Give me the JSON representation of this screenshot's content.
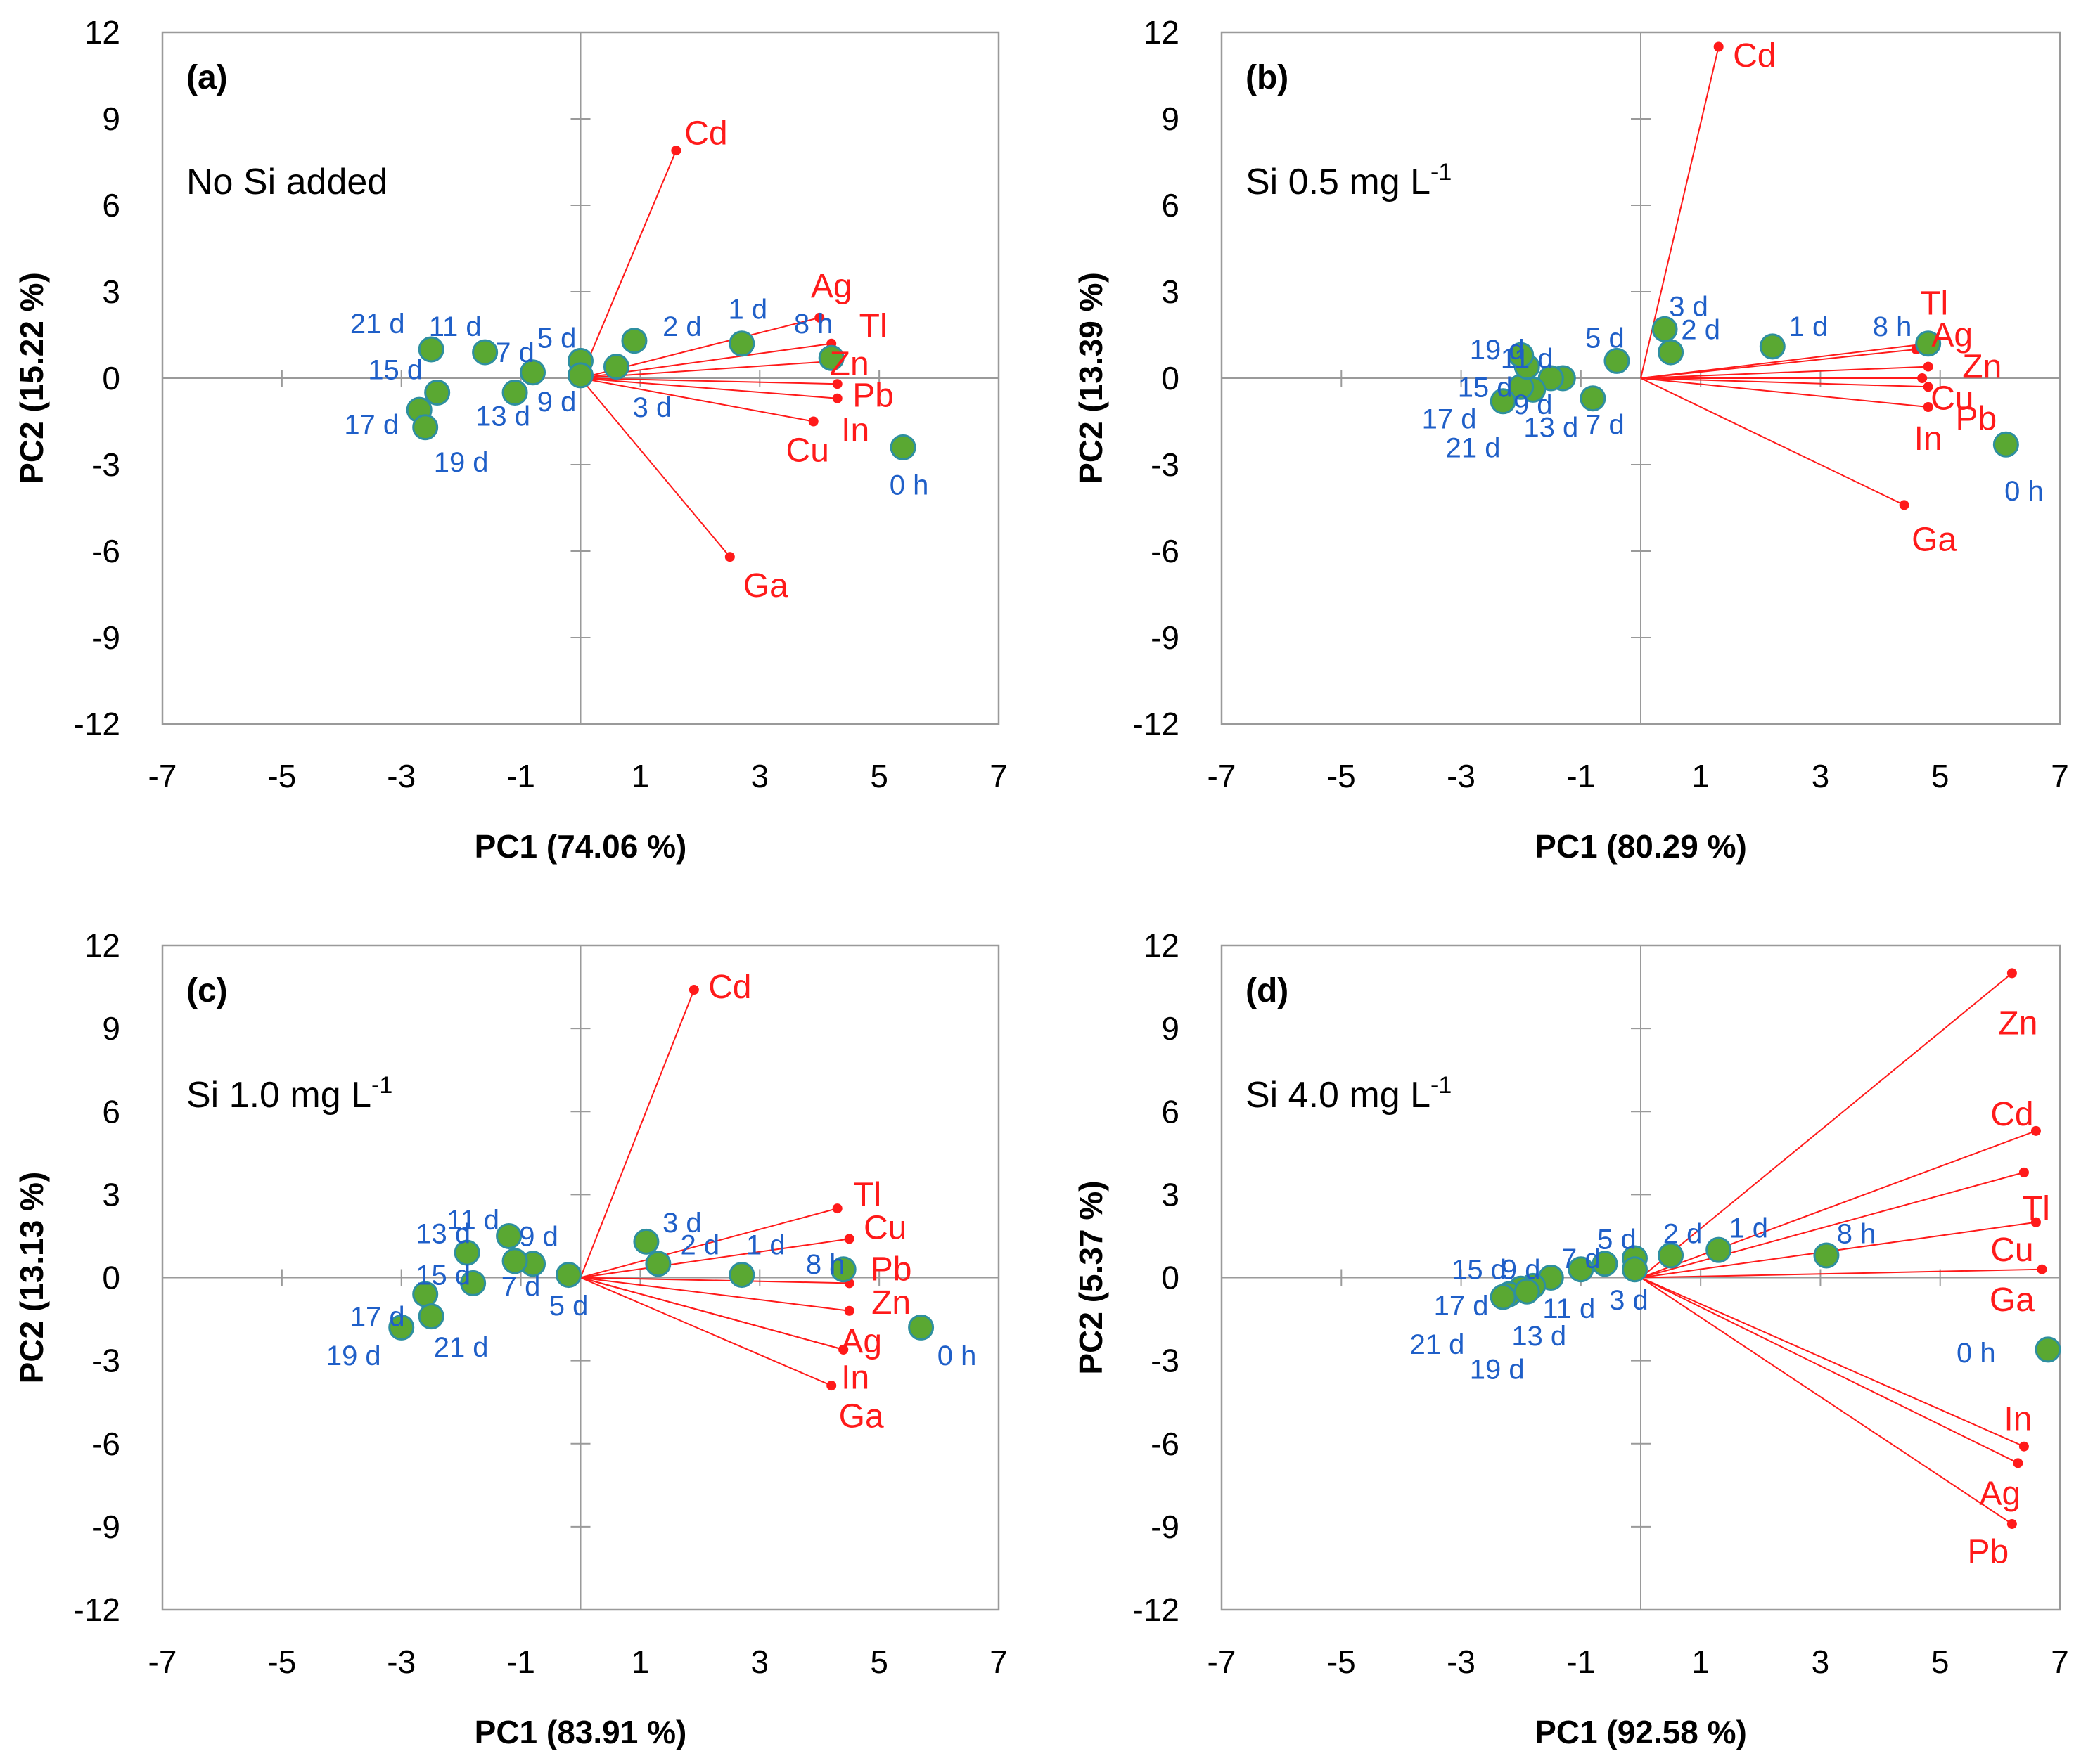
{
  "colors": {
    "score_fill": "#5aa832",
    "score_stroke": "#2e8fa0",
    "score_label": "#1f5fc8",
    "loading": "#ff1a1a",
    "frame": "#9a9a9a",
    "zero_line": "#9a9a9a"
  },
  "chart_data": [
    {
      "type": "scatter",
      "panel": "(a)",
      "title": "No Si added",
      "title_sup": "",
      "xlabel": "PC1 (74.06 %)",
      "ylabel": "PC2 (15.22 %)",
      "xlim": [
        -7,
        7
      ],
      "ylim": [
        -12,
        12
      ],
      "xticks": [
        -7,
        -5,
        -3,
        -1,
        1,
        3,
        5,
        7
      ],
      "yticks": [
        12,
        9,
        6,
        3,
        0,
        -3,
        -6,
        -9,
        -12
      ],
      "scores": [
        {
          "label": "0 h",
          "x": 5.4,
          "y": -2.4,
          "lx": 5.5,
          "ly": -3.7
        },
        {
          "label": "8 h",
          "x": 4.2,
          "y": 0.7,
          "lx": 3.9,
          "ly": 1.9
        },
        {
          "label": "1 d",
          "x": 2.7,
          "y": 1.2,
          "lx": 2.8,
          "ly": 2.4
        },
        {
          "label": "2 d",
          "x": 0.9,
          "y": 1.3,
          "lx": 1.7,
          "ly": 1.8
        },
        {
          "label": "3 d",
          "x": 0.6,
          "y": 0.4,
          "lx": 1.2,
          "ly": -1.0
        },
        {
          "label": "5 d",
          "x": 0.0,
          "y": 0.6,
          "lx": -0.4,
          "ly": 1.4
        },
        {
          "label": "7 d",
          "x": -0.8,
          "y": 0.2,
          "lx": -1.1,
          "ly": 0.9
        },
        {
          "label": "9 d",
          "x": 0.0,
          "y": 0.1,
          "lx": -0.4,
          "ly": -0.8
        },
        {
          "label": "11 d",
          "x": -1.6,
          "y": 0.9,
          "lx": -2.1,
          "ly": 1.8
        },
        {
          "label": "13 d",
          "x": -1.1,
          "y": -0.5,
          "lx": -1.3,
          "ly": -1.3
        },
        {
          "label": "15 d",
          "x": -2.4,
          "y": -0.5,
          "lx": -3.1,
          "ly": 0.3
        },
        {
          "label": "17 d",
          "x": -2.7,
          "y": -1.1,
          "lx": -3.5,
          "ly": -1.6
        },
        {
          "label": "19 d",
          "x": -2.6,
          "y": -1.7,
          "lx": -2.0,
          "ly": -2.9
        },
        {
          "label": "21 d",
          "x": -2.5,
          "y": 1.0,
          "lx": -3.4,
          "ly": 1.9
        }
      ],
      "loadings": [
        {
          "label": "Cd",
          "x": 1.6,
          "y": 7.9,
          "lx": 2.1,
          "ly": 8.5
        },
        {
          "label": "Ag",
          "x": 4.0,
          "y": 2.1,
          "lx": 4.2,
          "ly": 3.2
        },
        {
          "label": "Tl",
          "x": 4.2,
          "y": 1.2,
          "lx": 4.9,
          "ly": 1.8
        },
        {
          "label": "Zn",
          "x": 4.3,
          "y": 0.6,
          "lx": 4.5,
          "ly": 0.5
        },
        {
          "label": "Pb",
          "x": 4.3,
          "y": -0.2,
          "lx": 4.9,
          "ly": -0.6
        },
        {
          "label": "In",
          "x": 4.3,
          "y": -0.7,
          "lx": 4.6,
          "ly": -1.8
        },
        {
          "label": "Cu",
          "x": 3.9,
          "y": -1.5,
          "lx": 3.8,
          "ly": -2.5
        },
        {
          "label": "Ga",
          "x": 2.5,
          "y": -6.2,
          "lx": 3.1,
          "ly": -7.2
        }
      ]
    },
    {
      "type": "scatter",
      "panel": "(b)",
      "title": "Si 0.5 mg L",
      "title_sup": "-1",
      "xlabel": "PC1 (80.29 %)",
      "ylabel": "PC2 (13.39 %)",
      "xlim": [
        -7,
        7
      ],
      "ylim": [
        -12,
        12
      ],
      "xticks": [
        -7,
        -5,
        -3,
        -1,
        1,
        3,
        5,
        7
      ],
      "yticks": [
        12,
        9,
        6,
        3,
        0,
        -3,
        -6,
        -9,
        -12
      ],
      "scores": [
        {
          "label": "0 h",
          "x": 6.1,
          "y": -2.3,
          "lx": 6.4,
          "ly": -3.9
        },
        {
          "label": "8 h",
          "x": 4.8,
          "y": 1.2,
          "lx": 4.2,
          "ly": 1.8
        },
        {
          "label": "1 d",
          "x": 2.2,
          "y": 1.1,
          "lx": 2.8,
          "ly": 1.8
        },
        {
          "label": "2 d",
          "x": 0.5,
          "y": 0.9,
          "lx": 1.0,
          "ly": 1.7
        },
        {
          "label": "3 d",
          "x": 0.4,
          "y": 1.7,
          "lx": 0.8,
          "ly": 2.5
        },
        {
          "label": "5 d",
          "x": -0.4,
          "y": 0.6,
          "lx": -0.6,
          "ly": 1.4
        },
        {
          "label": "7 d",
          "x": -0.8,
          "y": -0.7,
          "lx": -0.6,
          "ly": -1.6
        },
        {
          "label": "9 d",
          "x": -1.3,
          "y": 0.0,
          "lx": -1.8,
          "ly": -0.9
        },
        {
          "label": "11 d",
          "x": -1.5,
          "y": 0.0,
          "lx": -1.9,
          "ly": 0.7
        },
        {
          "label": "13 d",
          "x": -1.8,
          "y": -0.4,
          "lx": -1.5,
          "ly": -1.7
        },
        {
          "label": "15 d",
          "x": -2.0,
          "y": -0.3,
          "lx": -2.6,
          "ly": -0.3
        },
        {
          "label": "17 d",
          "x": -2.3,
          "y": -0.8,
          "lx": -3.2,
          "ly": -1.4
        },
        {
          "label": "19 d",
          "x": -1.9,
          "y": 0.4,
          "lx": -2.4,
          "ly": 1.0
        },
        {
          "label": "21 d",
          "x": -2.0,
          "y": 0.8,
          "lx": -2.8,
          "ly": -2.4
        }
      ],
      "loadings": [
        {
          "label": "Cd",
          "x": 1.3,
          "y": 11.5,
          "lx": 1.9,
          "ly": 11.2
        },
        {
          "label": "Tl",
          "x": 4.6,
          "y": 1.0,
          "lx": 4.9,
          "ly": 2.6
        },
        {
          "label": "Ag",
          "x": 4.8,
          "y": 1.2,
          "lx": 5.2,
          "ly": 1.5
        },
        {
          "label": "Zn",
          "x": 4.8,
          "y": 0.4,
          "lx": 5.7,
          "ly": 0.4
        },
        {
          "label": "Cu",
          "x": 4.7,
          "y": 0.0,
          "lx": 5.2,
          "ly": -0.7
        },
        {
          "label": "In",
          "x": 4.8,
          "y": -0.3,
          "lx": 4.8,
          "ly": -2.1
        },
        {
          "label": "Pb",
          "x": 4.8,
          "y": -1.0,
          "lx": 5.6,
          "ly": -1.4
        },
        {
          "label": "Ga",
          "x": 4.4,
          "y": -4.4,
          "lx": 4.9,
          "ly": -5.6
        }
      ]
    },
    {
      "type": "scatter",
      "panel": "(c)",
      "title": "Si 1.0 mg L",
      "title_sup": "-1",
      "xlabel": "PC1 (83.91 %)",
      "ylabel": "PC2 (13.13 %)",
      "xlim": [
        -7,
        7
      ],
      "ylim": [
        -12,
        12
      ],
      "xticks": [
        -7,
        -5,
        -3,
        -1,
        1,
        3,
        5,
        7
      ],
      "yticks": [
        12,
        9,
        6,
        3,
        0,
        -3,
        -6,
        -9,
        -12
      ],
      "scores": [
        {
          "label": "0 h",
          "x": 5.7,
          "y": -1.8,
          "lx": 6.3,
          "ly": -2.8
        },
        {
          "label": "8 h",
          "x": 4.4,
          "y": 0.3,
          "lx": 4.1,
          "ly": 0.5
        },
        {
          "label": "1 d",
          "x": 2.7,
          "y": 0.1,
          "lx": 3.1,
          "ly": 1.2
        },
        {
          "label": "2 d",
          "x": 1.3,
          "y": 0.5,
          "lx": 2.0,
          "ly": 1.2
        },
        {
          "label": "3 d",
          "x": 1.1,
          "y": 1.3,
          "lx": 1.7,
          "ly": 2.0
        },
        {
          "label": "5 d",
          "x": -0.2,
          "y": 0.1,
          "lx": -0.2,
          "ly": -1.0
        },
        {
          "label": "7 d",
          "x": -0.8,
          "y": 0.5,
          "lx": -1.0,
          "ly": -0.3
        },
        {
          "label": "9 d",
          "x": -1.1,
          "y": 0.6,
          "lx": -0.7,
          "ly": 1.5
        },
        {
          "label": "11 d",
          "x": -1.2,
          "y": 1.5,
          "lx": -1.8,
          "ly": 2.1
        },
        {
          "label": "13 d",
          "x": -1.9,
          "y": 0.9,
          "lx": -2.3,
          "ly": 1.6
        },
        {
          "label": "15 d",
          "x": -1.8,
          "y": -0.2,
          "lx": -2.3,
          "ly": 0.1
        },
        {
          "label": "17 d",
          "x": -2.6,
          "y": -0.6,
          "lx": -3.4,
          "ly": -1.4
        },
        {
          "label": "19 d",
          "x": -3.0,
          "y": -1.8,
          "lx": -3.8,
          "ly": -2.8
        },
        {
          "label": "21 d",
          "x": -2.5,
          "y": -1.4,
          "lx": -2.0,
          "ly": -2.5
        }
      ],
      "loadings": [
        {
          "label": "Cd",
          "x": 1.9,
          "y": 10.4,
          "lx": 2.5,
          "ly": 10.5
        },
        {
          "label": "Tl",
          "x": 4.3,
          "y": 2.5,
          "lx": 4.8,
          "ly": 3.0
        },
        {
          "label": "Cu",
          "x": 4.5,
          "y": 1.4,
          "lx": 5.1,
          "ly": 1.8
        },
        {
          "label": "Pb",
          "x": 4.5,
          "y": -0.2,
          "lx": 5.2,
          "ly": 0.3
        },
        {
          "label": "Zn",
          "x": 4.5,
          "y": -1.2,
          "lx": 5.2,
          "ly": -0.9
        },
        {
          "label": "Ag",
          "x": 4.4,
          "y": -2.6,
          "lx": 4.7,
          "ly": -2.3
        },
        {
          "label": "In",
          "x": 4.4,
          "y": -2.6,
          "lx": 4.6,
          "ly": -3.6
        },
        {
          "label": "Ga",
          "x": 4.2,
          "y": -3.9,
          "lx": 4.7,
          "ly": -5.0
        }
      ]
    },
    {
      "type": "scatter",
      "panel": "(d)",
      "title": "Si 4.0 mg L",
      "title_sup": "-1",
      "xlabel": "PC1 (92.58 %)",
      "ylabel": "PC2 (5.37 %)",
      "xlim": [
        -7,
        7
      ],
      "ylim": [
        -12,
        12
      ],
      "xticks": [
        -7,
        -5,
        -3,
        -1,
        1,
        3,
        5,
        7
      ],
      "yticks": [
        12,
        9,
        6,
        3,
        0,
        -3,
        -6,
        -9,
        -12
      ],
      "scores": [
        {
          "label": "0 h",
          "x": 6.8,
          "y": -2.6,
          "lx": 5.6,
          "ly": -2.7
        },
        {
          "label": "8 h",
          "x": 3.1,
          "y": 0.8,
          "lx": 3.6,
          "ly": 1.6
        },
        {
          "label": "1 d",
          "x": 1.3,
          "y": 1.0,
          "lx": 1.8,
          "ly": 1.8
        },
        {
          "label": "2 d",
          "x": 0.5,
          "y": 0.8,
          "lx": 0.7,
          "ly": 1.6
        },
        {
          "label": "5 d",
          "x": -0.1,
          "y": 0.7,
          "lx": -0.4,
          "ly": 1.4
        },
        {
          "label": "3 d",
          "x": -0.1,
          "y": 0.3,
          "lx": -0.2,
          "ly": -0.8
        },
        {
          "label": "7 d",
          "x": -0.6,
          "y": 0.5,
          "lx": -1.0,
          "ly": 0.7
        },
        {
          "label": "11 d",
          "x": -1.0,
          "y": 0.3,
          "lx": -1.2,
          "ly": -1.1
        },
        {
          "label": "9 d",
          "x": -1.5,
          "y": 0.0,
          "lx": -2.0,
          "ly": 0.3
        },
        {
          "label": "13 d",
          "x": -1.8,
          "y": -0.3,
          "lx": -1.7,
          "ly": -2.1
        },
        {
          "label": "15 d",
          "x": -2.0,
          "y": -0.4,
          "lx": -2.7,
          "ly": 0.3
        },
        {
          "label": "17 d",
          "x": -2.2,
          "y": -0.6,
          "lx": -3.0,
          "ly": -1.0
        },
        {
          "label": "19 d",
          "x": -1.9,
          "y": -0.5,
          "lx": -2.4,
          "ly": -3.3
        },
        {
          "label": "21 d",
          "x": -2.3,
          "y": -0.7,
          "lx": -3.4,
          "ly": -2.4
        }
      ],
      "loadings": [
        {
          "label": "Zn",
          "x": 6.2,
          "y": 11.0,
          "lx": 6.3,
          "ly": 9.2
        },
        {
          "label": "Cd",
          "x": 6.6,
          "y": 5.3,
          "lx": 6.2,
          "ly": 5.9
        },
        {
          "label": "Tl",
          "x": 6.4,
          "y": 3.8,
          "lx": 6.6,
          "ly": 2.5
        },
        {
          "label": "Cu",
          "x": 6.6,
          "y": 2.0,
          "lx": 6.2,
          "ly": 1.0
        },
        {
          "label": "Ga",
          "x": 6.7,
          "y": 0.3,
          "lx": 6.2,
          "ly": -0.8
        },
        {
          "label": "In",
          "x": 6.4,
          "y": -6.1,
          "lx": 6.3,
          "ly": -5.1
        },
        {
          "label": "Ag",
          "x": 6.3,
          "y": -6.7,
          "lx": 6.0,
          "ly": -7.8
        },
        {
          "label": "Pb",
          "x": 6.2,
          "y": -8.9,
          "lx": 5.8,
          "ly": -9.9
        }
      ]
    }
  ]
}
